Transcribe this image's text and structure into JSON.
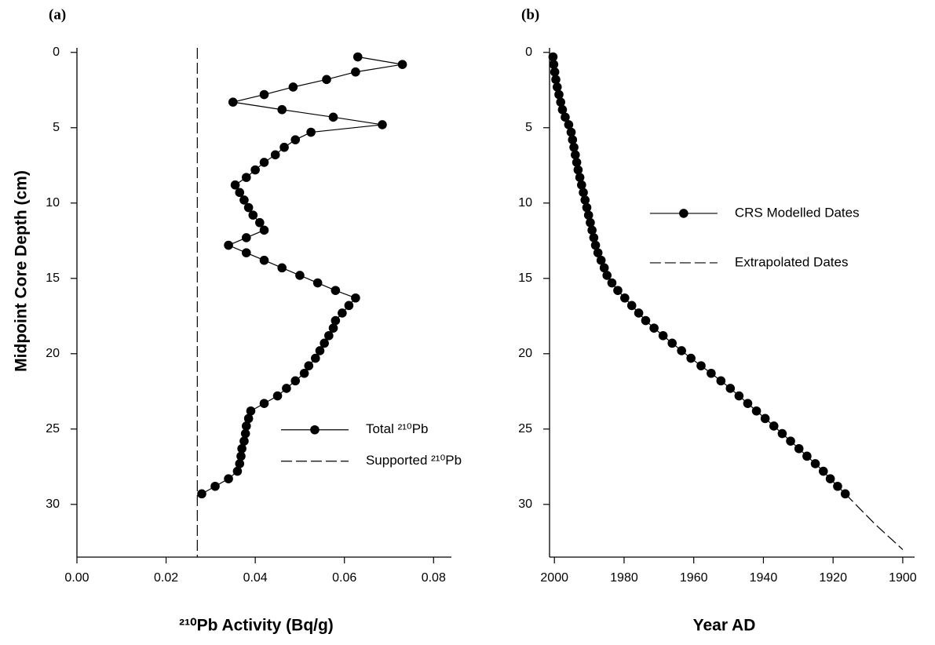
{
  "chart_data": [
    {
      "type": "line",
      "title": "(a)",
      "xlabel": "²¹⁰Pb Activity (Bq/g)",
      "ylabel": "Midpoint Core Depth (cm)",
      "xlim": [
        0,
        0.084
      ],
      "xticks": [
        {
          "value": 0,
          "label": "0.00"
        },
        {
          "value": 0.02,
          "label": "0.02"
        },
        {
          "value": 0.04,
          "label": "0.04"
        },
        {
          "value": 0.06,
          "label": "0.06"
        },
        {
          "value": 0.08,
          "label": "0.08"
        }
      ],
      "ylim": [
        -0.3,
        33.5
      ],
      "yticks": [
        0,
        5,
        10,
        15,
        20,
        25,
        30
      ],
      "y_inverted": true,
      "legend": "lower right",
      "series": [
        {
          "name": "Total ²¹⁰Pb",
          "color": "#000000",
          "marker": "circle",
          "dash": "solid",
          "x": [
            0.063,
            0.073,
            0.0625,
            0.056,
            0.0485,
            0.042,
            0.035,
            0.046,
            0.0575,
            0.0685,
            0.0525,
            0.049,
            0.0465,
            0.0445,
            0.042,
            0.04,
            0.038,
            0.0355,
            0.0365,
            0.0375,
            0.0385,
            0.0395,
            0.041,
            0.042,
            0.038,
            0.034,
            0.038,
            0.042,
            0.046,
            0.05,
            0.054,
            0.058,
            0.0625,
            0.061,
            0.0595,
            0.058,
            0.0575,
            0.0565,
            0.0555,
            0.0545,
            0.0535,
            0.052,
            0.051,
            0.049,
            0.047,
            0.045,
            0.042,
            0.039,
            0.0385,
            0.038,
            0.0378,
            0.0375,
            0.037,
            0.0368,
            0.0365,
            0.036,
            0.034,
            0.031,
            0.028
          ],
          "y": [
            0.3,
            0.8,
            1.3,
            1.8,
            2.3,
            2.8,
            3.3,
            3.8,
            4.3,
            4.8,
            5.3,
            5.8,
            6.3,
            6.8,
            7.3,
            7.8,
            8.3,
            8.8,
            9.3,
            9.8,
            10.3,
            10.8,
            11.3,
            11.8,
            12.3,
            12.8,
            13.3,
            13.8,
            14.3,
            14.8,
            15.3,
            15.8,
            16.3,
            16.8,
            17.3,
            17.8,
            18.3,
            18.8,
            19.3,
            19.8,
            20.3,
            20.8,
            21.3,
            21.8,
            22.3,
            22.8,
            23.3,
            23.8,
            24.3,
            24.8,
            25.3,
            25.8,
            26.3,
            26.8,
            27.3,
            27.8,
            28.3,
            28.8,
            29.3
          ]
        },
        {
          "name": "Supported ²¹⁰Pb",
          "color": "#000000",
          "marker": "none",
          "dash": "dashed",
          "x": [
            0.027,
            0.027
          ],
          "y": [
            -0.3,
            33.5
          ]
        }
      ]
    },
    {
      "type": "line",
      "title": "(b)",
      "xlabel": "Year AD",
      "xlim": [
        2001.4,
        1896.6
      ],
      "xticks": [
        2000,
        1980,
        1960,
        1940,
        1920,
        1900
      ],
      "ylim": [
        -0.3,
        33.5
      ],
      "yticks": [
        0,
        5,
        10,
        15,
        20,
        25,
        30
      ],
      "y_inverted": true,
      "legend": "upper center",
      "series": [
        {
          "name": "CRS Modelled Dates",
          "color": "#000000",
          "marker": "circle",
          "dash": "solid",
          "x": [
            2000.4,
            2000.2,
            1999.9,
            1999.6,
            1999.2,
            1998.7,
            1998.2,
            1997.7,
            1996.9,
            1995.9,
            1995.2,
            1994.8,
            1994.4,
            1994.0,
            1993.6,
            1993.2,
            1992.7,
            1992.2,
            1991.7,
            1991.2,
            1990.7,
            1990.2,
            1989.7,
            1989.2,
            1988.7,
            1988.2,
            1987.5,
            1986.6,
            1985.7,
            1984.9,
            1983.5,
            1981.8,
            1979.8,
            1977.8,
            1975.8,
            1973.8,
            1971.4,
            1968.8,
            1966.2,
            1963.5,
            1960.8,
            1957.9,
            1955.0,
            1952.2,
            1949.5,
            1947.0,
            1944.5,
            1942.0,
            1939.5,
            1937.0,
            1934.6,
            1932.2,
            1929.8,
            1927.5,
            1925.1,
            1922.8,
            1920.8,
            1918.7,
            1916.5
          ],
          "y": [
            0.3,
            0.8,
            1.3,
            1.8,
            2.3,
            2.8,
            3.3,
            3.8,
            4.3,
            4.8,
            5.3,
            5.8,
            6.3,
            6.8,
            7.3,
            7.8,
            8.3,
            8.8,
            9.3,
            9.8,
            10.3,
            10.8,
            11.3,
            11.8,
            12.3,
            12.8,
            13.3,
            13.8,
            14.3,
            14.8,
            15.3,
            15.8,
            16.3,
            16.8,
            17.3,
            17.8,
            18.3,
            18.8,
            19.3,
            19.8,
            20.3,
            20.8,
            21.3,
            21.8,
            22.3,
            22.8,
            23.3,
            23.8,
            24.3,
            24.8,
            25.3,
            25.8,
            26.3,
            26.8,
            27.3,
            27.8,
            28.3,
            28.8,
            29.3
          ]
        },
        {
          "name": "Extrapolated Dates",
          "color": "#000000",
          "marker": "none",
          "dash": "dashed",
          "x": [
            1916.5,
            1908,
            1900
          ],
          "y": [
            29.3,
            31.3,
            33
          ]
        }
      ]
    }
  ]
}
